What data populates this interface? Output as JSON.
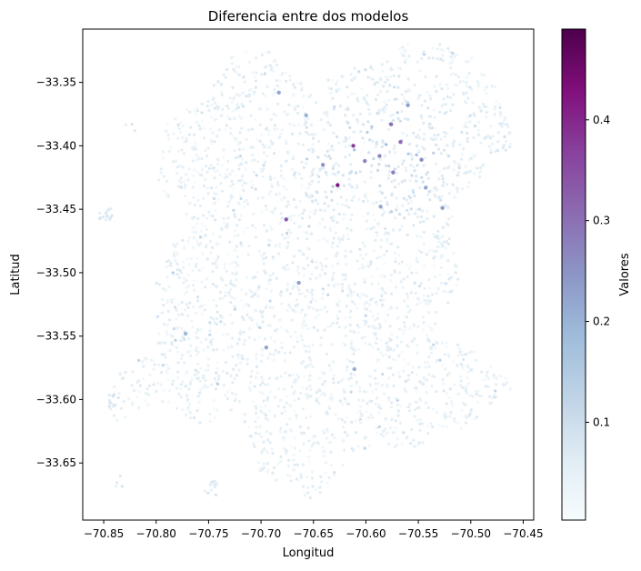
{
  "chart_data": {
    "type": "scatter",
    "title": "Diferencia entre dos modelos",
    "xlabel": "Longitud",
    "ylabel": "Latitud",
    "xlim": [
      -70.87,
      -70.44
    ],
    "ylim": [
      -33.695,
      -33.308
    ],
    "xticks": [
      {
        "value": -70.85,
        "label": "−70.85"
      },
      {
        "value": -70.8,
        "label": "−70.80"
      },
      {
        "value": -70.75,
        "label": "−70.75"
      },
      {
        "value": -70.7,
        "label": "−70.70"
      },
      {
        "value": -70.65,
        "label": "−70.65"
      },
      {
        "value": -70.6,
        "label": "−70.60"
      },
      {
        "value": -70.55,
        "label": "−70.55"
      },
      {
        "value": -70.5,
        "label": "−70.50"
      },
      {
        "value": -70.45,
        "label": "−70.45"
      }
    ],
    "yticks": [
      {
        "value": -33.35,
        "label": "−33.35"
      },
      {
        "value": -33.4,
        "label": "−33.40"
      },
      {
        "value": -33.45,
        "label": "−33.45"
      },
      {
        "value": -33.5,
        "label": "−33.50"
      },
      {
        "value": -33.55,
        "label": "−33.55"
      },
      {
        "value": -33.6,
        "label": "−33.60"
      },
      {
        "value": -33.65,
        "label": "−33.65"
      }
    ],
    "grid": false,
    "colorbar": {
      "label": "Valores",
      "colormap": "BuPu",
      "range": [
        0.003,
        0.49
      ],
      "ticks": [
        {
          "value": 0.1,
          "label": "0.1"
        },
        {
          "value": 0.2,
          "label": "0.2"
        },
        {
          "value": 0.3,
          "label": "0.3"
        },
        {
          "value": 0.4,
          "label": "0.4"
        }
      ],
      "stops": [
        "#f7fcfd",
        "#e0ecf4",
        "#bfd3e6",
        "#9ebcda",
        "#8c96c6",
        "#8c6bb1",
        "#88419d",
        "#810f7c",
        "#4d004b"
      ]
    },
    "highlights": [
      {
        "x": -70.612,
        "y": -33.4,
        "value": 0.37
      },
      {
        "x": -70.627,
        "y": -33.431,
        "value": 0.42
      },
      {
        "x": -70.676,
        "y": -33.458,
        "value": 0.33
      },
      {
        "x": -70.567,
        "y": -33.397,
        "value": 0.31
      },
      {
        "x": -70.576,
        "y": -33.383,
        "value": 0.3
      },
      {
        "x": -70.574,
        "y": -33.421,
        "value": 0.28
      },
      {
        "x": -70.601,
        "y": -33.412,
        "value": 0.27
      },
      {
        "x": -70.547,
        "y": -33.411,
        "value": 0.26
      },
      {
        "x": -70.641,
        "y": -33.415,
        "value": 0.25
      },
      {
        "x": -70.587,
        "y": -33.408,
        "value": 0.27
      },
      {
        "x": -70.527,
        "y": -33.449,
        "value": 0.24
      },
      {
        "x": -70.586,
        "y": -33.448,
        "value": 0.22
      },
      {
        "x": -70.664,
        "y": -33.508,
        "value": 0.23
      },
      {
        "x": -70.695,
        "y": -33.559,
        "value": 0.22
      },
      {
        "x": -70.611,
        "y": -33.576,
        "value": 0.21
      },
      {
        "x": -70.683,
        "y": -33.358,
        "value": 0.22
      },
      {
        "x": -70.56,
        "y": -33.368,
        "value": 0.23
      },
      {
        "x": -70.657,
        "y": -33.376,
        "value": 0.2
      },
      {
        "x": -70.772,
        "y": -33.548,
        "value": 0.19
      },
      {
        "x": -70.543,
        "y": -33.433,
        "value": 0.22
      }
    ]
  }
}
